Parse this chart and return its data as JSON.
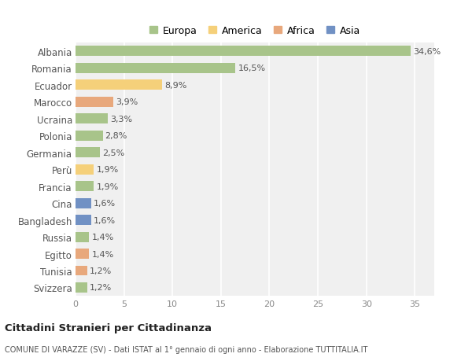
{
  "categories": [
    "Albania",
    "Romania",
    "Ecuador",
    "Marocco",
    "Ucraina",
    "Polonia",
    "Germania",
    "Perù",
    "Francia",
    "Cina",
    "Bangladesh",
    "Russia",
    "Egitto",
    "Tunisia",
    "Svizzera"
  ],
  "values": [
    34.6,
    16.5,
    8.9,
    3.9,
    3.3,
    2.8,
    2.5,
    1.9,
    1.9,
    1.6,
    1.6,
    1.4,
    1.4,
    1.2,
    1.2
  ],
  "labels": [
    "34,6%",
    "16,5%",
    "8,9%",
    "3,9%",
    "3,3%",
    "2,8%",
    "2,5%",
    "1,9%",
    "1,9%",
    "1,6%",
    "1,6%",
    "1,4%",
    "1,4%",
    "1,2%",
    "1,2%"
  ],
  "continent": [
    "Europa",
    "Europa",
    "America",
    "Africa",
    "Europa",
    "Europa",
    "Europa",
    "America",
    "Europa",
    "Asia",
    "Asia",
    "Europa",
    "Africa",
    "Africa",
    "Europa"
  ],
  "colors": {
    "Europa": "#a8c48a",
    "America": "#f5d07a",
    "Africa": "#e8a87c",
    "Asia": "#7191c4"
  },
  "background_color": "#ffffff",
  "plot_bg_color": "#f0f0f0",
  "grid_color": "#ffffff",
  "title": "Cittadini Stranieri per Cittadinanza",
  "subtitle": "COMUNE DI VARAZZE (SV) - Dati ISTAT al 1° gennaio di ogni anno - Elaborazione TUTTITALIA.IT",
  "xlim": [
    0,
    37
  ],
  "xticks": [
    0,
    5,
    10,
    15,
    20,
    25,
    30,
    35
  ],
  "legend_order": [
    "Europa",
    "America",
    "Africa",
    "Asia"
  ]
}
